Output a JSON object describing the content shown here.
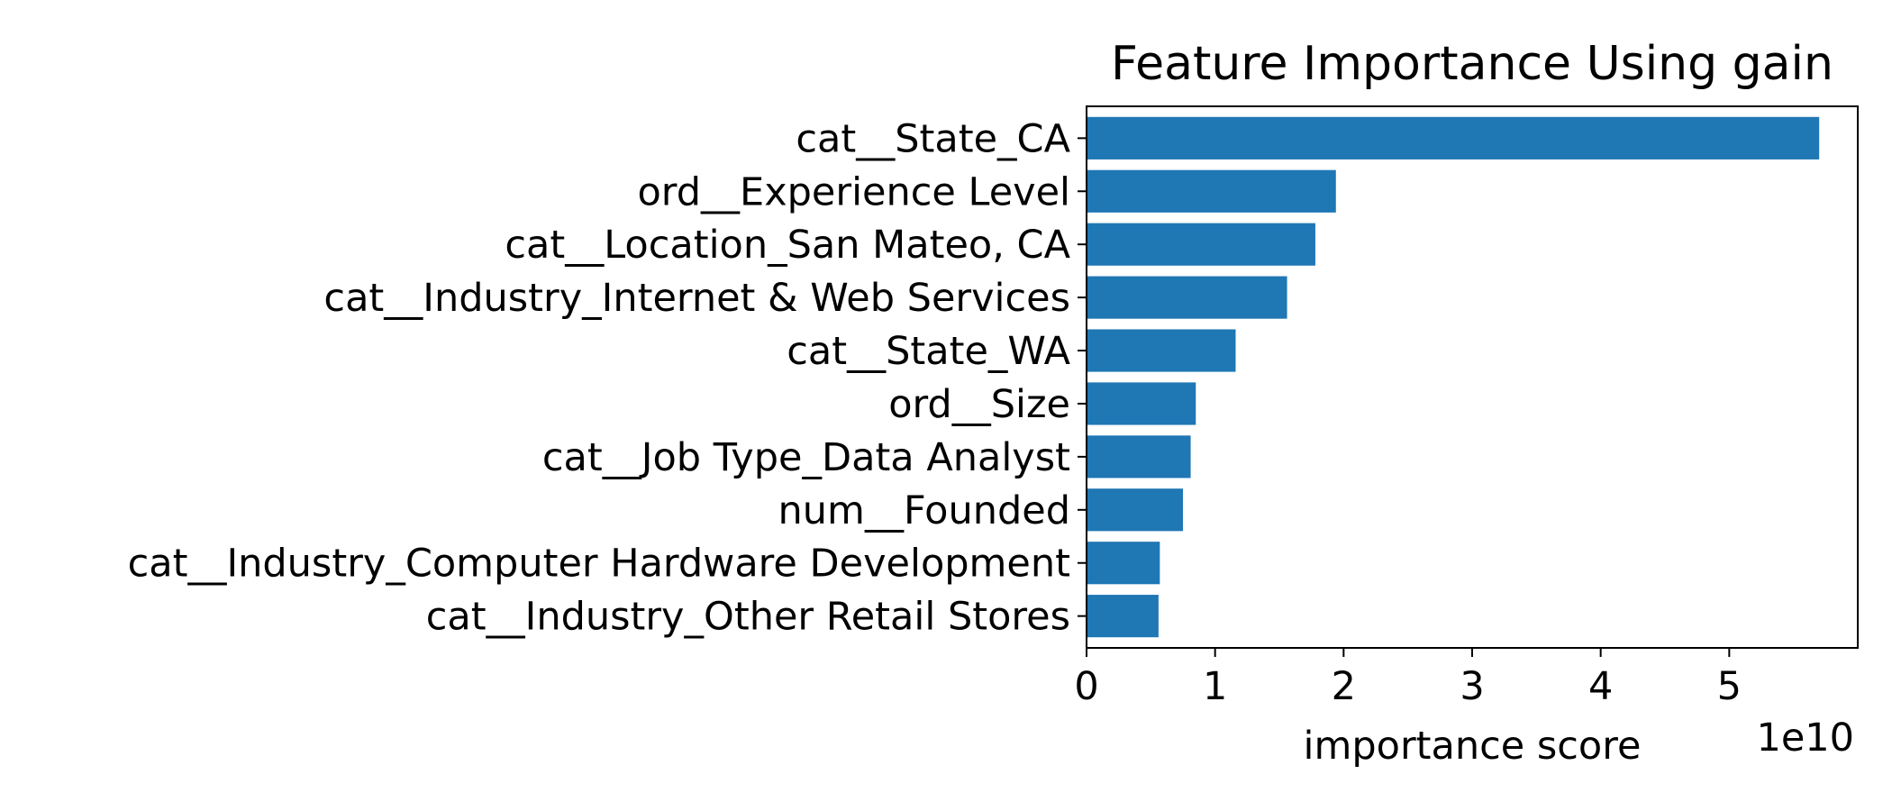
{
  "chart_data": {
    "type": "bar",
    "orientation": "horizontal",
    "title": "Feature Importance Using gain",
    "xlabel": "importance score",
    "ylabel": "",
    "x_offset_label": "1e10",
    "x_scale": 10000000000,
    "xlim": [
      0,
      60000000000
    ],
    "x_ticks": [
      0,
      10000000000,
      20000000000,
      30000000000,
      40000000000,
      50000000000
    ],
    "x_tick_labels": [
      "0",
      "1",
      "2",
      "3",
      "4",
      "5"
    ],
    "grid": false,
    "legend": "none",
    "bar_color": "#1f77b4",
    "categories": [
      "cat__State_CA",
      "ord__Experience Level",
      "cat__Location_San Mateo, CA",
      "cat__Industry_Internet & Web Services",
      "cat__State_WA",
      "ord__Size",
      "cat__Job Type_Data Analyst",
      "num__Founded",
      "cat__Industry_Computer Hardware Development",
      "cat__Industry_Other Retail Stores"
    ],
    "values": [
      57000000000,
      19400000000,
      17800000000,
      15600000000,
      11600000000,
      8500000000,
      8100000000,
      7500000000,
      5700000000,
      5600000000
    ]
  }
}
